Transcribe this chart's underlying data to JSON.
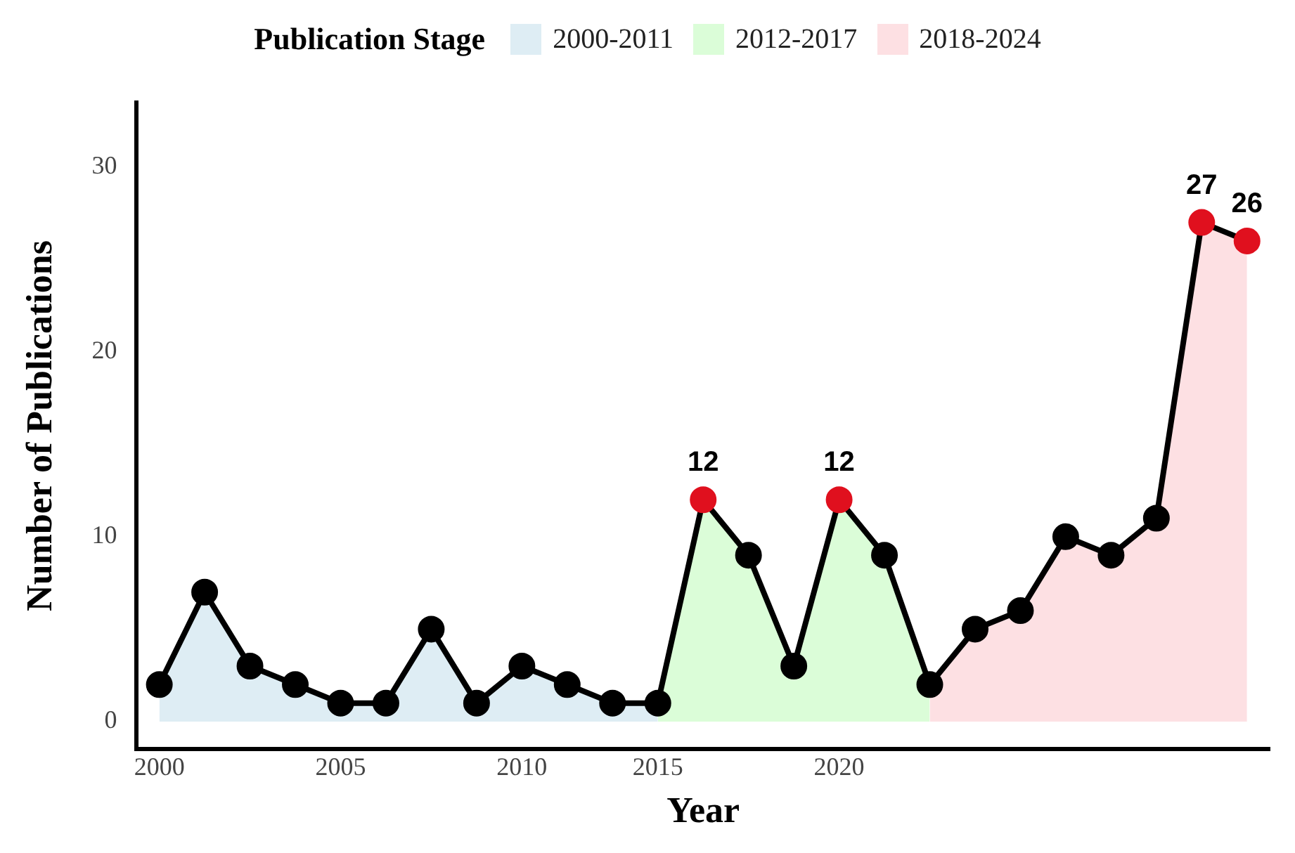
{
  "chart_data": {
    "type": "area",
    "xlabel": "Year",
    "ylabel": "Number of Publications",
    "legend_title": "Publication Stage",
    "legend": "top",
    "grid": false,
    "line_style": "solid",
    "categories": [
      "2000",
      null,
      null,
      null,
      "2005",
      null,
      null,
      null,
      "2010",
      null,
      null,
      "2015",
      null,
      null,
      null,
      "2020",
      null,
      null,
      null,
      null,
      null,
      null,
      null,
      null,
      null
    ],
    "ylim": [
      -1.5,
      33.5
    ],
    "yticks": [
      0,
      10,
      20,
      30
    ],
    "series": [
      {
        "name": "2000-2011",
        "color": "#deedf4",
        "values": [
          2,
          7,
          3,
          2,
          1,
          1,
          5,
          1,
          3,
          2,
          1,
          1,
          null,
          null,
          null,
          null,
          null,
          null,
          null,
          null,
          null,
          null,
          null,
          null,
          null
        ]
      },
      {
        "name": "2012-2017",
        "color": "#dbfdd8",
        "values": [
          null,
          null,
          null,
          null,
          null,
          null,
          null,
          null,
          null,
          null,
          null,
          1,
          12,
          9,
          3,
          12,
          9,
          2,
          null,
          null,
          null,
          null,
          null,
          null,
          null
        ]
      },
      {
        "name": "2018-2024",
        "color": "#fde0e3",
        "values": [
          null,
          null,
          null,
          null,
          null,
          null,
          null,
          null,
          null,
          null,
          null,
          null,
          null,
          null,
          null,
          null,
          null,
          2,
          5,
          6,
          10,
          9,
          11,
          27,
          26
        ]
      },
      {
        "type": "scatter",
        "marker": "circle",
        "values": [
          2,
          7,
          3,
          2,
          1,
          1,
          5,
          1,
          3,
          2,
          1,
          1,
          12,
          9,
          3,
          12,
          9,
          2,
          5,
          6,
          10,
          9,
          11,
          27,
          26
        ],
        "colors": [
          "#000000",
          "#000000",
          "#000000",
          "#000000",
          "#000000",
          "#000000",
          "#000000",
          "#000000",
          "#000000",
          "#000000",
          "#000000",
          "#000000",
          "#e0101e",
          "#000000",
          "#000000",
          "#e0101e",
          "#000000",
          "#000000",
          "#000000",
          "#000000",
          "#000000",
          "#000000",
          "#000000",
          "#e0101e",
          "#e0101e"
        ],
        "value_labels": [
          null,
          null,
          null,
          null,
          null,
          null,
          null,
          null,
          null,
          null,
          null,
          null,
          "12",
          null,
          null,
          "12",
          null,
          null,
          null,
          null,
          null,
          null,
          null,
          "27",
          "26"
        ]
      }
    ]
  }
}
